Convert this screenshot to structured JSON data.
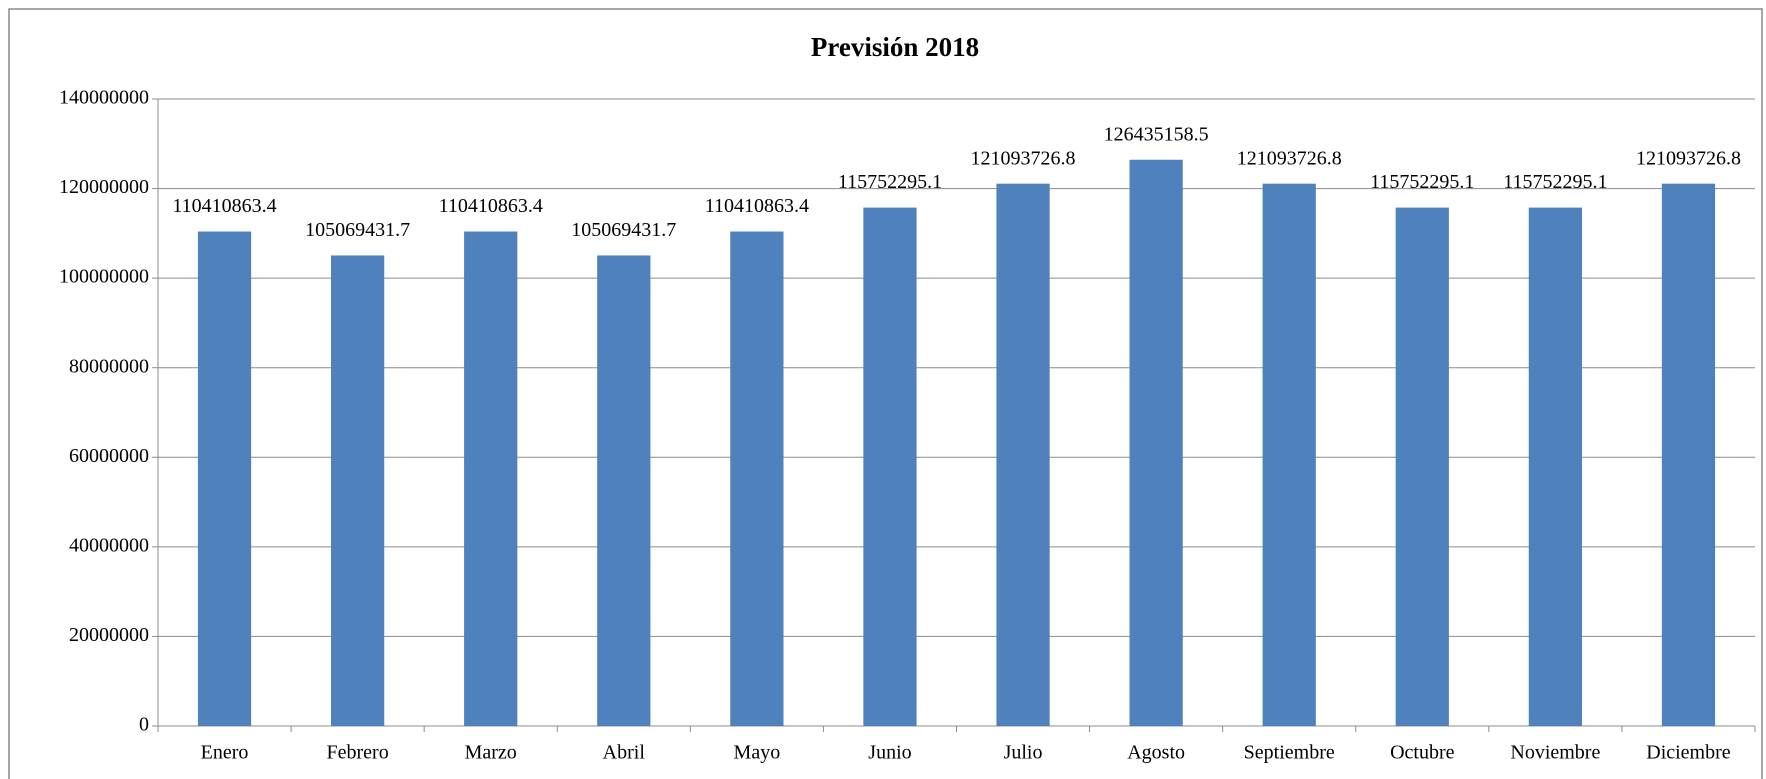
{
  "chart_data": {
    "type": "bar",
    "title": "Previsión 2018",
    "categories": [
      "Enero",
      "Febrero",
      "Marzo",
      "Abril",
      "Mayo",
      "Junio",
      "Julio",
      "Agosto",
      "Septiembre",
      "Octubre",
      "Noviembre",
      "Diciembre"
    ],
    "values": [
      110410863.4,
      105069431.7,
      110410863.4,
      105069431.7,
      110410863.4,
      115752295.1,
      121093726.8,
      126435158.5,
      121093726.8,
      115752295.1,
      115752295.1,
      121093726.8
    ],
    "color": "#4f81bd",
    "ylim": [
      0,
      140000000
    ],
    "yticks": [
      0,
      20000000,
      40000000,
      60000000,
      80000000,
      100000000,
      120000000,
      140000000
    ],
    "grid": true
  }
}
